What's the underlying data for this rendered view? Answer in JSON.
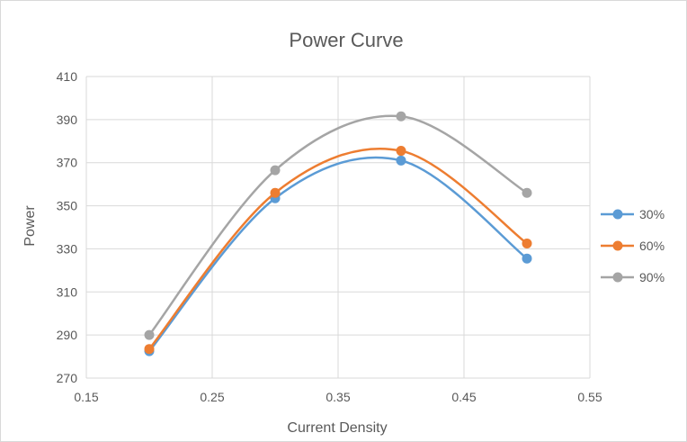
{
  "chart_data": {
    "type": "line",
    "title": "Power Curve",
    "xlabel": "Current Density",
    "ylabel": "Power",
    "xlim": [
      0.15,
      0.55
    ],
    "ylim": [
      270,
      410
    ],
    "x_ticks": [
      "0.15",
      "0.25",
      "0.35",
      "0.45",
      "0.55"
    ],
    "y_ticks": [
      "270",
      "290",
      "310",
      "330",
      "350",
      "370",
      "390",
      "410"
    ],
    "grid": true,
    "smooth": true,
    "legend_position": "right",
    "x": [
      0.2,
      0.3,
      0.4,
      0.5
    ],
    "series": [
      {
        "name": "30%",
        "color": "#5b9bd5",
        "values": [
          282.5,
          353.5,
          371,
          325.5
        ]
      },
      {
        "name": "60%",
        "color": "#ed7d31",
        "values": [
          283.5,
          356,
          375.5,
          332.5
        ]
      },
      {
        "name": "90%",
        "color": "#a5a5a5",
        "values": [
          290,
          366.5,
          391.5,
          356
        ]
      }
    ]
  }
}
